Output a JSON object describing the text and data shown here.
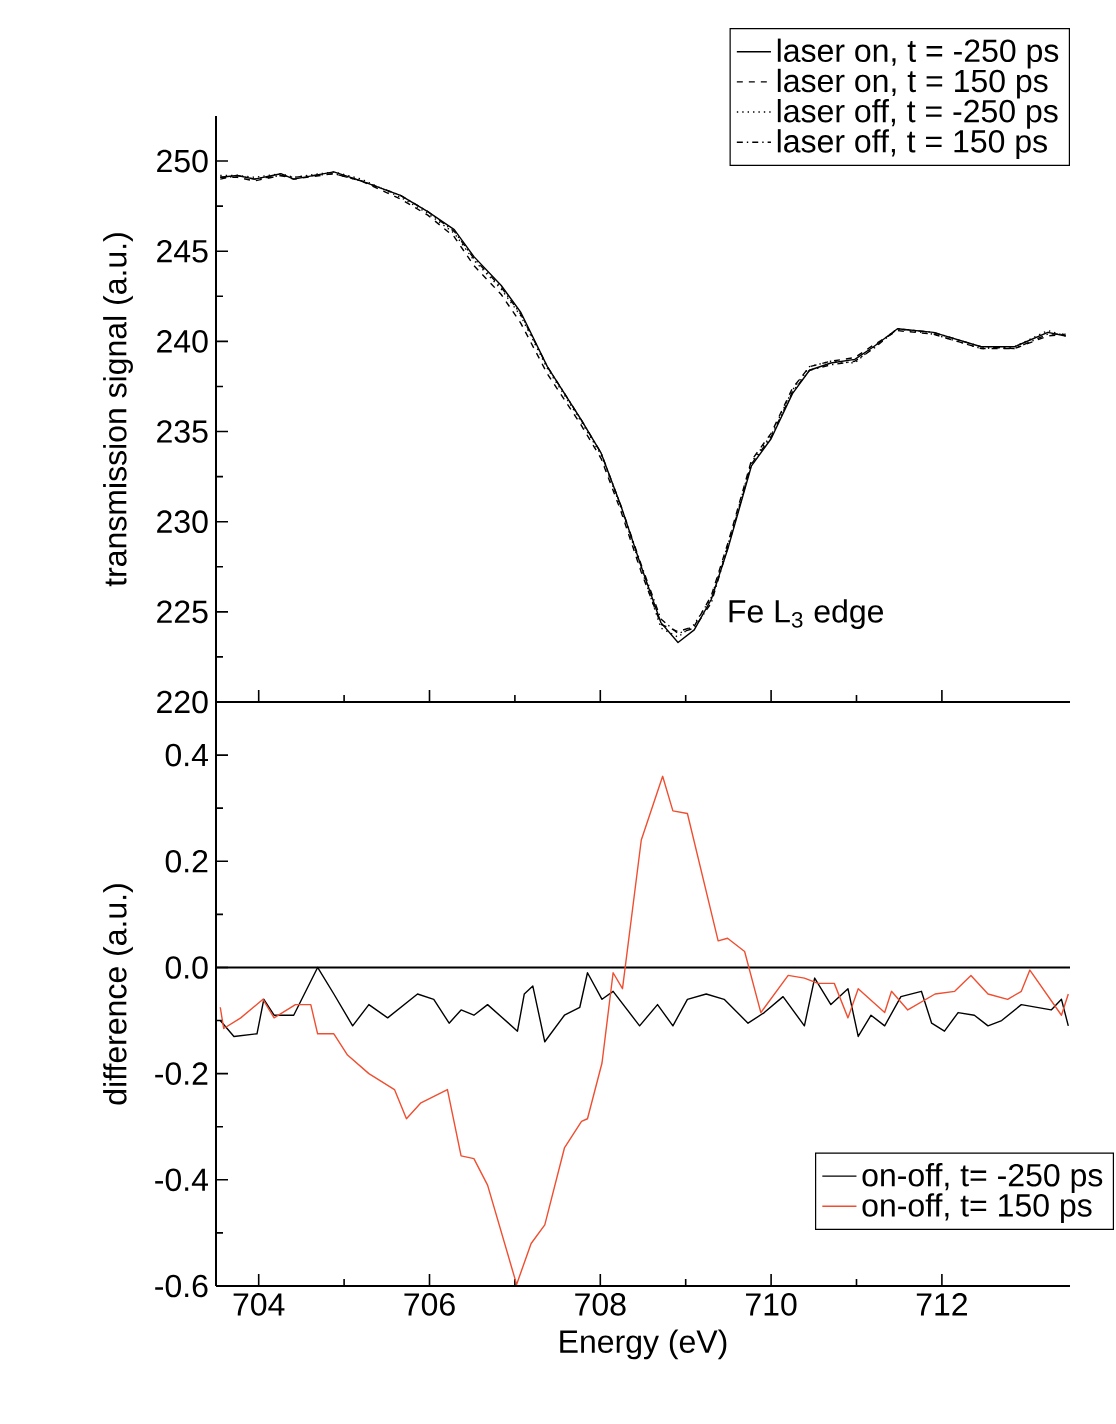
{
  "chart_data": [
    {
      "type": "line",
      "ylabel": "transmission signal (a.u.)",
      "xlim": [
        703.5,
        713.5
      ],
      "xticks": [
        704,
        706,
        708,
        710,
        712
      ],
      "ylim": [
        220,
        252.5
      ],
      "yticks": [
        220,
        225,
        230,
        235,
        240,
        245,
        250
      ],
      "tick_labels": "y",
      "legend": "top right",
      "annotations": [
        "Fe L$_{3}$ edge"
      ],
      "series": [
        {
          "name": "laser on, t = -250 ps",
          "color": "#000000",
          "line_style": "solid",
          "x": [
            703.55,
            703.75,
            703.95,
            704.26,
            704.41,
            704.88,
            705.2,
            705.66,
            705.98,
            706.29,
            706.52,
            706.84,
            707.07,
            707.38,
            707.77,
            708.01,
            708.24,
            708.48,
            708.71,
            708.91,
            709.1,
            709.3,
            709.5,
            709.77,
            710.0,
            710.25,
            710.45,
            710.7,
            710.98,
            711.2,
            711.48,
            711.9,
            712.46,
            712.85,
            713.24,
            713.45
          ],
          "values": [
            249.1,
            249.2,
            249.0,
            249.3,
            249.0,
            249.4,
            248.9,
            248.1,
            247.2,
            246.2,
            244.7,
            243.1,
            241.6,
            238.6,
            235.7,
            233.8,
            230.9,
            227.5,
            224.4,
            223.3,
            224.0,
            225.7,
            228.6,
            233.1,
            234.6,
            237.1,
            238.4,
            238.8,
            239.0,
            239.7,
            240.7,
            240.5,
            239.7,
            239.7,
            240.5,
            240.3
          ]
        },
        {
          "name": "laser on, t = 150 ps",
          "color": "#000000",
          "line_style": "dashed",
          "x": [
            703.55,
            703.75,
            703.95,
            704.26,
            704.41,
            704.88,
            705.2,
            705.66,
            705.98,
            706.29,
            706.52,
            706.84,
            707.07,
            707.38,
            707.77,
            708.01,
            708.24,
            708.48,
            708.71,
            708.91,
            709.1,
            709.3,
            709.5,
            709.77,
            710.0,
            710.25,
            710.45,
            710.7,
            710.98,
            711.2,
            711.48,
            711.9,
            712.46,
            712.85,
            713.24,
            713.45
          ],
          "values": [
            249.1,
            249.1,
            248.9,
            249.2,
            249.0,
            249.3,
            248.9,
            247.9,
            247.0,
            245.8,
            244.2,
            242.6,
            241.0,
            238.2,
            235.4,
            233.5,
            230.6,
            227.2,
            224.3,
            223.9,
            224.2,
            225.9,
            228.9,
            233.4,
            234.9,
            237.4,
            238.6,
            238.9,
            239.1,
            239.8,
            240.6,
            240.4,
            239.6,
            239.6,
            240.3,
            240.4
          ]
        },
        {
          "name": "laser off, t = -250 ps",
          "color": "#000000",
          "line_style": "dotted",
          "x": [
            703.55,
            703.75,
            703.95,
            704.26,
            704.41,
            704.88,
            705.2,
            705.66,
            705.98,
            706.29,
            706.52,
            706.84,
            707.07,
            707.38,
            707.77,
            708.01,
            708.24,
            708.48,
            708.71,
            708.91,
            709.1,
            709.3,
            709.5,
            709.77,
            710.0,
            710.25,
            710.45,
            710.7,
            710.98,
            711.2,
            711.48,
            711.9,
            712.46,
            712.85,
            713.24,
            713.45
          ],
          "values": [
            249.2,
            249.2,
            249.1,
            249.3,
            249.1,
            249.4,
            249.0,
            248.0,
            247.1,
            246.0,
            244.5,
            242.9,
            241.4,
            238.5,
            235.6,
            233.7,
            230.8,
            227.4,
            224.1,
            223.6,
            224.3,
            225.8,
            228.8,
            233.3,
            234.8,
            237.3,
            238.6,
            238.9,
            238.8,
            239.7,
            240.7,
            240.4,
            239.6,
            239.7,
            240.6,
            240.3
          ]
        },
        {
          "name": "laser off, t = 150 ps",
          "color": "#000000",
          "line_style": "dashdot",
          "x": [
            703.55,
            703.75,
            703.95,
            704.26,
            704.41,
            704.88,
            705.2,
            705.66,
            705.98,
            706.29,
            706.52,
            706.84,
            707.07,
            707.38,
            707.77,
            708.01,
            708.24,
            708.48,
            708.71,
            708.91,
            709.1,
            709.3,
            709.5,
            709.77,
            710.0,
            710.25,
            710.45,
            710.7,
            710.98,
            711.2,
            711.48,
            711.9,
            712.46,
            712.85,
            713.24,
            713.45
          ],
          "values": [
            249.0,
            249.2,
            249.0,
            249.2,
            249.1,
            249.3,
            248.9,
            248.1,
            247.2,
            246.1,
            244.6,
            243.0,
            241.5,
            238.6,
            235.7,
            233.8,
            230.9,
            227.6,
            224.6,
            223.8,
            224.1,
            225.5,
            228.7,
            233.2,
            234.7,
            237.2,
            238.4,
            238.7,
            238.9,
            239.6,
            240.7,
            240.5,
            239.7,
            239.6,
            240.4,
            240.4
          ]
        }
      ]
    },
    {
      "type": "line",
      "xlabel": "Energy (eV)",
      "ylabel": "difference (a.u.)",
      "xlim": [
        703.5,
        713.5
      ],
      "xticks": [
        704,
        706,
        708,
        710,
        712
      ],
      "ylim": [
        -0.6,
        0.5
      ],
      "yticks": [
        -0.6,
        -0.4,
        -0.2,
        {
          "value": 0,
          "label": "0.0"
        },
        0.2,
        0.4
      ],
      "legend": "bottom right",
      "ref_lines": [
        {
          "axis": "y",
          "value": 0,
          "color": "#000000"
        }
      ],
      "series": [
        {
          "name": "on-off, t= -250 ps",
          "color": "#000000",
          "line_style": "solid",
          "x": [
            703.55,
            703.71,
            703.98,
            704.06,
            704.18,
            704.41,
            704.69,
            704.88,
            705.1,
            705.29,
            705.51,
            705.86,
            706.05,
            706.23,
            706.37,
            706.52,
            706.68,
            707.03,
            707.11,
            707.21,
            707.35,
            707.58,
            707.76,
            707.85,
            708.02,
            708.15,
            708.46,
            708.67,
            708.85,
            709.02,
            709.24,
            709.45,
            709.73,
            709.92,
            710.14,
            710.39,
            710.51,
            710.7,
            710.9,
            711.02,
            711.17,
            711.33,
            711.52,
            711.76,
            711.88,
            712.03,
            712.19,
            712.38,
            712.54,
            712.7,
            712.93,
            713.28,
            713.4,
            713.48
          ],
          "values": [
            -0.1,
            -0.13,
            -0.125,
            -0.06,
            -0.09,
            -0.09,
            0.0,
            -0.05,
            -0.11,
            -0.07,
            -0.095,
            -0.05,
            -0.06,
            -0.105,
            -0.08,
            -0.09,
            -0.07,
            -0.12,
            -0.05,
            -0.035,
            -0.14,
            -0.09,
            -0.075,
            -0.01,
            -0.06,
            -0.045,
            -0.11,
            -0.07,
            -0.11,
            -0.06,
            -0.05,
            -0.06,
            -0.105,
            -0.085,
            -0.055,
            -0.11,
            -0.02,
            -0.07,
            -0.04,
            -0.13,
            -0.09,
            -0.11,
            -0.055,
            -0.045,
            -0.105,
            -0.12,
            -0.085,
            -0.09,
            -0.11,
            -0.1,
            -0.07,
            -0.08,
            -0.06,
            -0.11
          ]
        },
        {
          "name": "on-off, t= 150 ps",
          "color": "#f04e30",
          "line_style": "solid",
          "x": [
            703.55,
            703.59,
            703.79,
            704.05,
            704.18,
            704.43,
            704.61,
            704.69,
            704.88,
            705.04,
            705.29,
            705.59,
            705.73,
            705.9,
            706.21,
            706.37,
            706.52,
            706.68,
            707.02,
            707.19,
            707.35,
            707.58,
            707.78,
            707.85,
            708.02,
            708.15,
            708.26,
            708.48,
            708.73,
            708.85,
            709.02,
            709.38,
            709.49,
            709.69,
            709.88,
            710.2,
            710.39,
            710.55,
            710.74,
            710.9,
            711.02,
            711.33,
            711.41,
            711.6,
            711.92,
            712.15,
            712.34,
            712.54,
            712.77,
            712.93,
            713.03,
            713.4,
            713.48
          ],
          "values": [
            -0.075,
            -0.115,
            -0.095,
            -0.06,
            -0.095,
            -0.07,
            -0.07,
            -0.125,
            -0.125,
            -0.165,
            -0.2,
            -0.23,
            -0.285,
            -0.255,
            -0.23,
            -0.355,
            -0.36,
            -0.41,
            -0.597,
            -0.52,
            -0.485,
            -0.34,
            -0.29,
            -0.285,
            -0.18,
            -0.01,
            -0.04,
            0.24,
            0.36,
            0.295,
            0.29,
            0.05,
            0.055,
            0.03,
            -0.085,
            -0.015,
            -0.02,
            -0.03,
            -0.03,
            -0.095,
            -0.04,
            -0.085,
            -0.045,
            -0.08,
            -0.05,
            -0.045,
            -0.015,
            -0.05,
            -0.06,
            -0.045,
            -0.005,
            -0.09,
            -0.05
          ]
        }
      ]
    }
  ]
}
